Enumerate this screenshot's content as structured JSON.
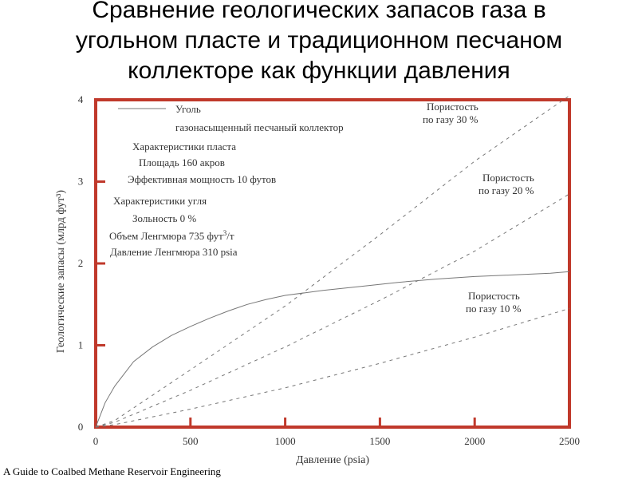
{
  "title_lines": [
    "Сравнение геологических запасов газа в",
    "угольном пласте и традиционном песчаном",
    "коллекторе как функции давления"
  ],
  "footnote": "A Guide to Coalbed Methane Reservoir Engineering",
  "colors": {
    "frame": "#c0392b",
    "curve": "#777777",
    "text": "#333333"
  },
  "chart_data": {
    "type": "line",
    "xlabel": "Давление (psia)",
    "ylabel": "Геологические запасы (млрд фут³)",
    "xlim": [
      0,
      2500
    ],
    "ylim": [
      0,
      4
    ],
    "x_ticks": [
      0,
      500,
      1000,
      1500,
      2000,
      2500
    ],
    "y_ticks": [
      0,
      1,
      2,
      3,
      4
    ],
    "grid": false,
    "legend": {
      "coal": "Уголь",
      "sand": "газонасыщенный песчаный коллектор"
    },
    "annotations": {
      "reservoir_header": "Характеристики пласта",
      "reservoir_area": "Площадь 160 акров",
      "reservoir_thickness": "Эффективная мощность 10 футов",
      "coal_header": "Характеристики угля",
      "coal_ash": "Зольность 0 %",
      "coal_langmuir_volume_text": "Объем Ленгмюра 735 фут",
      "coal_langmuir_volume_sup": "3",
      "coal_langmuir_volume_unit": "/т",
      "coal_langmuir_pressure": "Давление Ленгмюра 310 psia"
    },
    "series": [
      {
        "name": "Уголь",
        "style": "solid",
        "x": [
          0,
          50,
          100,
          200,
          300,
          400,
          500,
          600,
          700,
          800,
          900,
          1000,
          1200,
          1400,
          1600,
          1800,
          2000,
          2200,
          2400,
          2500
        ],
        "y": [
          0,
          0.3,
          0.5,
          0.8,
          0.98,
          1.12,
          1.23,
          1.33,
          1.42,
          1.5,
          1.56,
          1.61,
          1.67,
          1.72,
          1.77,
          1.81,
          1.84,
          1.86,
          1.88,
          1.9
        ]
      },
      {
        "name": "Пористость по газу 30 %",
        "style": "dashed",
        "label_lines": [
          "Пористость",
          "по газу 30 %"
        ],
        "x": [
          0,
          100,
          500,
          1000,
          1500,
          2000,
          2500
        ],
        "y": [
          0,
          0.08,
          0.7,
          1.48,
          2.35,
          3.25,
          4.05
        ]
      },
      {
        "name": "Пористость по газу 20 %",
        "style": "dashed",
        "label_lines": [
          "Пористость",
          "по газу 20 %"
        ],
        "x": [
          0,
          100,
          500,
          1000,
          1500,
          2000,
          2500
        ],
        "y": [
          0,
          0.06,
          0.45,
          0.98,
          1.55,
          2.15,
          2.85
        ]
      },
      {
        "name": "Пористость по газу 10 %",
        "style": "dashed",
        "label_lines": [
          "Пористость",
          "по газу 10 %"
        ],
        "x": [
          0,
          100,
          500,
          1000,
          1500,
          2000,
          2500
        ],
        "y": [
          0,
          0.03,
          0.22,
          0.48,
          0.78,
          1.1,
          1.45
        ]
      }
    ]
  }
}
